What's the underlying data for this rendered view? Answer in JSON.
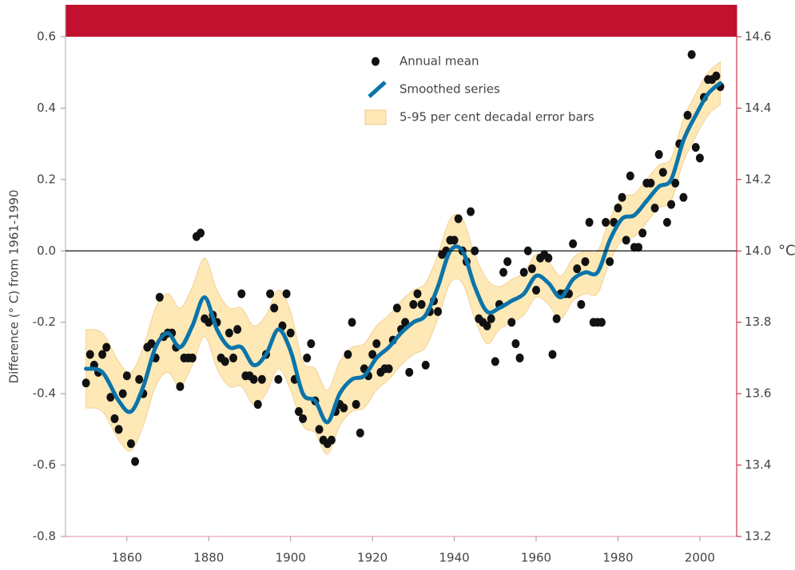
{
  "chart_data": {
    "type": "line",
    "ylabel": "Difference (° C) from 1961-1990",
    "y2label": "°C",
    "xlim": [
      1845,
      2009
    ],
    "xticks": [
      1860,
      1880,
      1900,
      1920,
      1940,
      1960,
      1980,
      2000
    ],
    "ylim": [
      -0.8,
      0.6
    ],
    "yticks": [
      -0.8,
      -0.6,
      -0.4,
      -0.2,
      {
        "value": 0,
        "label": "0.0"
      },
      0.2,
      0.4,
      0.6
    ],
    "y2lim": [
      13.2,
      14.6
    ],
    "y2ticks": [
      13.2,
      13.4,
      13.6,
      13.8,
      {
        "value": 14,
        "label": "14.0"
      },
      14.2,
      14.4,
      14.6
    ],
    "reference_line": 0,
    "legend": "top-center",
    "series": [
      {
        "name": "Annual mean",
        "type": "scatter",
        "color": "#111111",
        "x": [
          1850,
          1851,
          1852,
          1853,
          1854,
          1855,
          1856,
          1857,
          1858,
          1859,
          1860,
          1861,
          1862,
          1863,
          1864,
          1865,
          1866,
          1867,
          1868,
          1869,
          1870,
          1871,
          1872,
          1873,
          1874,
          1875,
          1876,
          1877,
          1878,
          1879,
          1880,
          1881,
          1882,
          1883,
          1884,
          1885,
          1886,
          1887,
          1888,
          1889,
          1890,
          1891,
          1892,
          1893,
          1894,
          1895,
          1896,
          1897,
          1898,
          1899,
          1900,
          1901,
          1902,
          1903,
          1904,
          1905,
          1906,
          1907,
          1908,
          1909,
          1910,
          1911,
          1912,
          1913,
          1914,
          1915,
          1916,
          1917,
          1918,
          1919,
          1920,
          1921,
          1922,
          1923,
          1924,
          1925,
          1926,
          1927,
          1928,
          1929,
          1930,
          1931,
          1932,
          1933,
          1934,
          1935,
          1936,
          1937,
          1938,
          1939,
          1940,
          1941,
          1942,
          1943,
          1944,
          1945,
          1946,
          1947,
          1948,
          1949,
          1950,
          1951,
          1952,
          1953,
          1954,
          1955,
          1956,
          1957,
          1958,
          1959,
          1960,
          1961,
          1962,
          1963,
          1964,
          1965,
          1966,
          1967,
          1968,
          1969,
          1970,
          1971,
          1972,
          1973,
          1974,
          1975,
          1976,
          1977,
          1978,
          1979,
          1980,
          1981,
          1982,
          1983,
          1984,
          1985,
          1986,
          1987,
          1988,
          1989,
          1990,
          1991,
          1992,
          1993,
          1994,
          1995,
          1996,
          1997,
          1998,
          1999,
          2000,
          2001,
          2002,
          2003,
          2004,
          2005
        ],
        "values": [
          -0.37,
          -0.29,
          -0.32,
          -0.34,
          -0.29,
          -0.27,
          -0.41,
          -0.47,
          -0.5,
          -0.4,
          -0.35,
          -0.54,
          -0.59,
          -0.36,
          -0.4,
          -0.27,
          -0.26,
          -0.3,
          -0.13,
          -0.24,
          -0.23,
          -0.23,
          -0.27,
          -0.38,
          -0.3,
          -0.3,
          -0.3,
          0.04,
          0.05,
          -0.19,
          -0.2,
          -0.18,
          -0.2,
          -0.3,
          -0.31,
          -0.23,
          -0.3,
          -0.22,
          -0.12,
          -0.35,
          -0.35,
          -0.36,
          -0.43,
          -0.36,
          -0.29,
          -0.12,
          -0.16,
          -0.36,
          -0.21,
          -0.12,
          -0.23,
          -0.36,
          -0.45,
          -0.47,
          -0.3,
          -0.26,
          -0.42,
          -0.5,
          -0.53,
          -0.54,
          -0.53,
          -0.45,
          -0.43,
          -0.44,
          -0.29,
          -0.2,
          -0.43,
          -0.51,
          -0.33,
          -0.35,
          -0.29,
          -0.26,
          -0.34,
          -0.33,
          -0.33,
          -0.25,
          -0.16,
          -0.22,
          -0.2,
          -0.34,
          -0.15,
          -0.12,
          -0.15,
          -0.32,
          -0.17,
          -0.14,
          -0.17,
          -0.01,
          0,
          0.03,
          0.03,
          0.09,
          0,
          -0.03,
          0.11,
          0,
          -0.19,
          -0.2,
          -0.21,
          -0.19,
          -0.31,
          -0.15,
          -0.06,
          -0.03,
          -0.2,
          -0.26,
          -0.3,
          -0.06,
          0,
          -0.05,
          -0.11,
          -0.02,
          -0.01,
          -0.02,
          -0.29,
          -0.19,
          -0.12,
          -0.12,
          -0.12,
          0.02,
          -0.05,
          -0.15,
          -0.03,
          0.08,
          -0.2,
          -0.2,
          -0.2,
          0.08,
          -0.03,
          0.08,
          0.12,
          0.15,
          0.03,
          0.21,
          0.01,
          0.01,
          0.05,
          0.19,
          0.19,
          0.12,
          0.27,
          0.22,
          0.08,
          0.13,
          0.19,
          0.3,
          0.15,
          0.38,
          0.55,
          0.29,
          0.26,
          0.43,
          0.48,
          0.48,
          0.49,
          0.46
        ]
      },
      {
        "name": "Smoothed series",
        "type": "line",
        "color": "#0b74aa",
        "x": [
          1850,
          1854,
          1858,
          1861,
          1864,
          1867,
          1870,
          1873,
          1876,
          1879,
          1882,
          1885,
          1888,
          1891,
          1894,
          1897,
          1900,
          1903,
          1906,
          1909,
          1912,
          1915,
          1918,
          1921,
          1924,
          1927,
          1930,
          1933,
          1936,
          1939,
          1942,
          1945,
          1948,
          1951,
          1954,
          1957,
          1960,
          1963,
          1966,
          1969,
          1972,
          1975,
          1978,
          1981,
          1984,
          1987,
          1990,
          1993,
          1996,
          1999,
          2002,
          2005
        ],
        "values": [
          -0.33,
          -0.34,
          -0.42,
          -0.45,
          -0.38,
          -0.27,
          -0.23,
          -0.27,
          -0.21,
          -0.13,
          -0.22,
          -0.27,
          -0.27,
          -0.32,
          -0.29,
          -0.22,
          -0.28,
          -0.4,
          -0.42,
          -0.48,
          -0.4,
          -0.36,
          -0.35,
          -0.3,
          -0.27,
          -0.23,
          -0.2,
          -0.18,
          -0.1,
          0,
          0,
          -0.1,
          -0.17,
          -0.16,
          -0.14,
          -0.12,
          -0.07,
          -0.09,
          -0.13,
          -0.08,
          -0.06,
          -0.06,
          0.03,
          0.09,
          0.1,
          0.14,
          0.18,
          0.2,
          0.31,
          0.38,
          0.44,
          0.47
        ]
      },
      {
        "name": "5-95 per cent decadal error bars",
        "type": "band",
        "color": "#fde8b6",
        "edge": "#f3c98a",
        "x": [
          1850,
          1854,
          1858,
          1861,
          1864,
          1867,
          1870,
          1873,
          1876,
          1879,
          1882,
          1885,
          1888,
          1891,
          1894,
          1897,
          1900,
          1903,
          1906,
          1909,
          1912,
          1915,
          1918,
          1921,
          1924,
          1927,
          1930,
          1933,
          1936,
          1939,
          1942,
          1945,
          1948,
          1951,
          1954,
          1957,
          1960,
          1963,
          1966,
          1969,
          1972,
          1975,
          1978,
          1981,
          1984,
          1987,
          1990,
          1993,
          1996,
          1999,
          2002,
          2005
        ],
        "lower": [
          -0.44,
          -0.45,
          -0.53,
          -0.56,
          -0.49,
          -0.38,
          -0.34,
          -0.38,
          -0.32,
          -0.24,
          -0.33,
          -0.38,
          -0.38,
          -0.43,
          -0.4,
          -0.33,
          -0.39,
          -0.49,
          -0.51,
          -0.57,
          -0.49,
          -0.45,
          -0.44,
          -0.39,
          -0.36,
          -0.32,
          -0.29,
          -0.27,
          -0.19,
          -0.09,
          -0.09,
          -0.19,
          -0.26,
          -0.22,
          -0.2,
          -0.18,
          -0.13,
          -0.15,
          -0.19,
          -0.14,
          -0.12,
          -0.12,
          -0.03,
          0.03,
          0.04,
          0.08,
          0.12,
          0.14,
          0.25,
          0.32,
          0.38,
          0.41
        ],
        "upper": [
          -0.22,
          -0.23,
          -0.31,
          -0.34,
          -0.27,
          -0.16,
          -0.12,
          -0.16,
          -0.1,
          -0.02,
          -0.11,
          -0.16,
          -0.16,
          -0.21,
          -0.18,
          -0.11,
          -0.17,
          -0.31,
          -0.33,
          -0.39,
          -0.31,
          -0.27,
          -0.26,
          -0.21,
          -0.18,
          -0.14,
          -0.11,
          -0.09,
          -0.01,
          0.09,
          0.09,
          -0.01,
          -0.08,
          -0.1,
          -0.08,
          -0.06,
          -0.01,
          -0.03,
          -0.07,
          -0.02,
          0,
          0,
          0.09,
          0.15,
          0.16,
          0.2,
          0.24,
          0.26,
          0.37,
          0.44,
          0.5,
          0.53
        ]
      }
    ]
  }
}
